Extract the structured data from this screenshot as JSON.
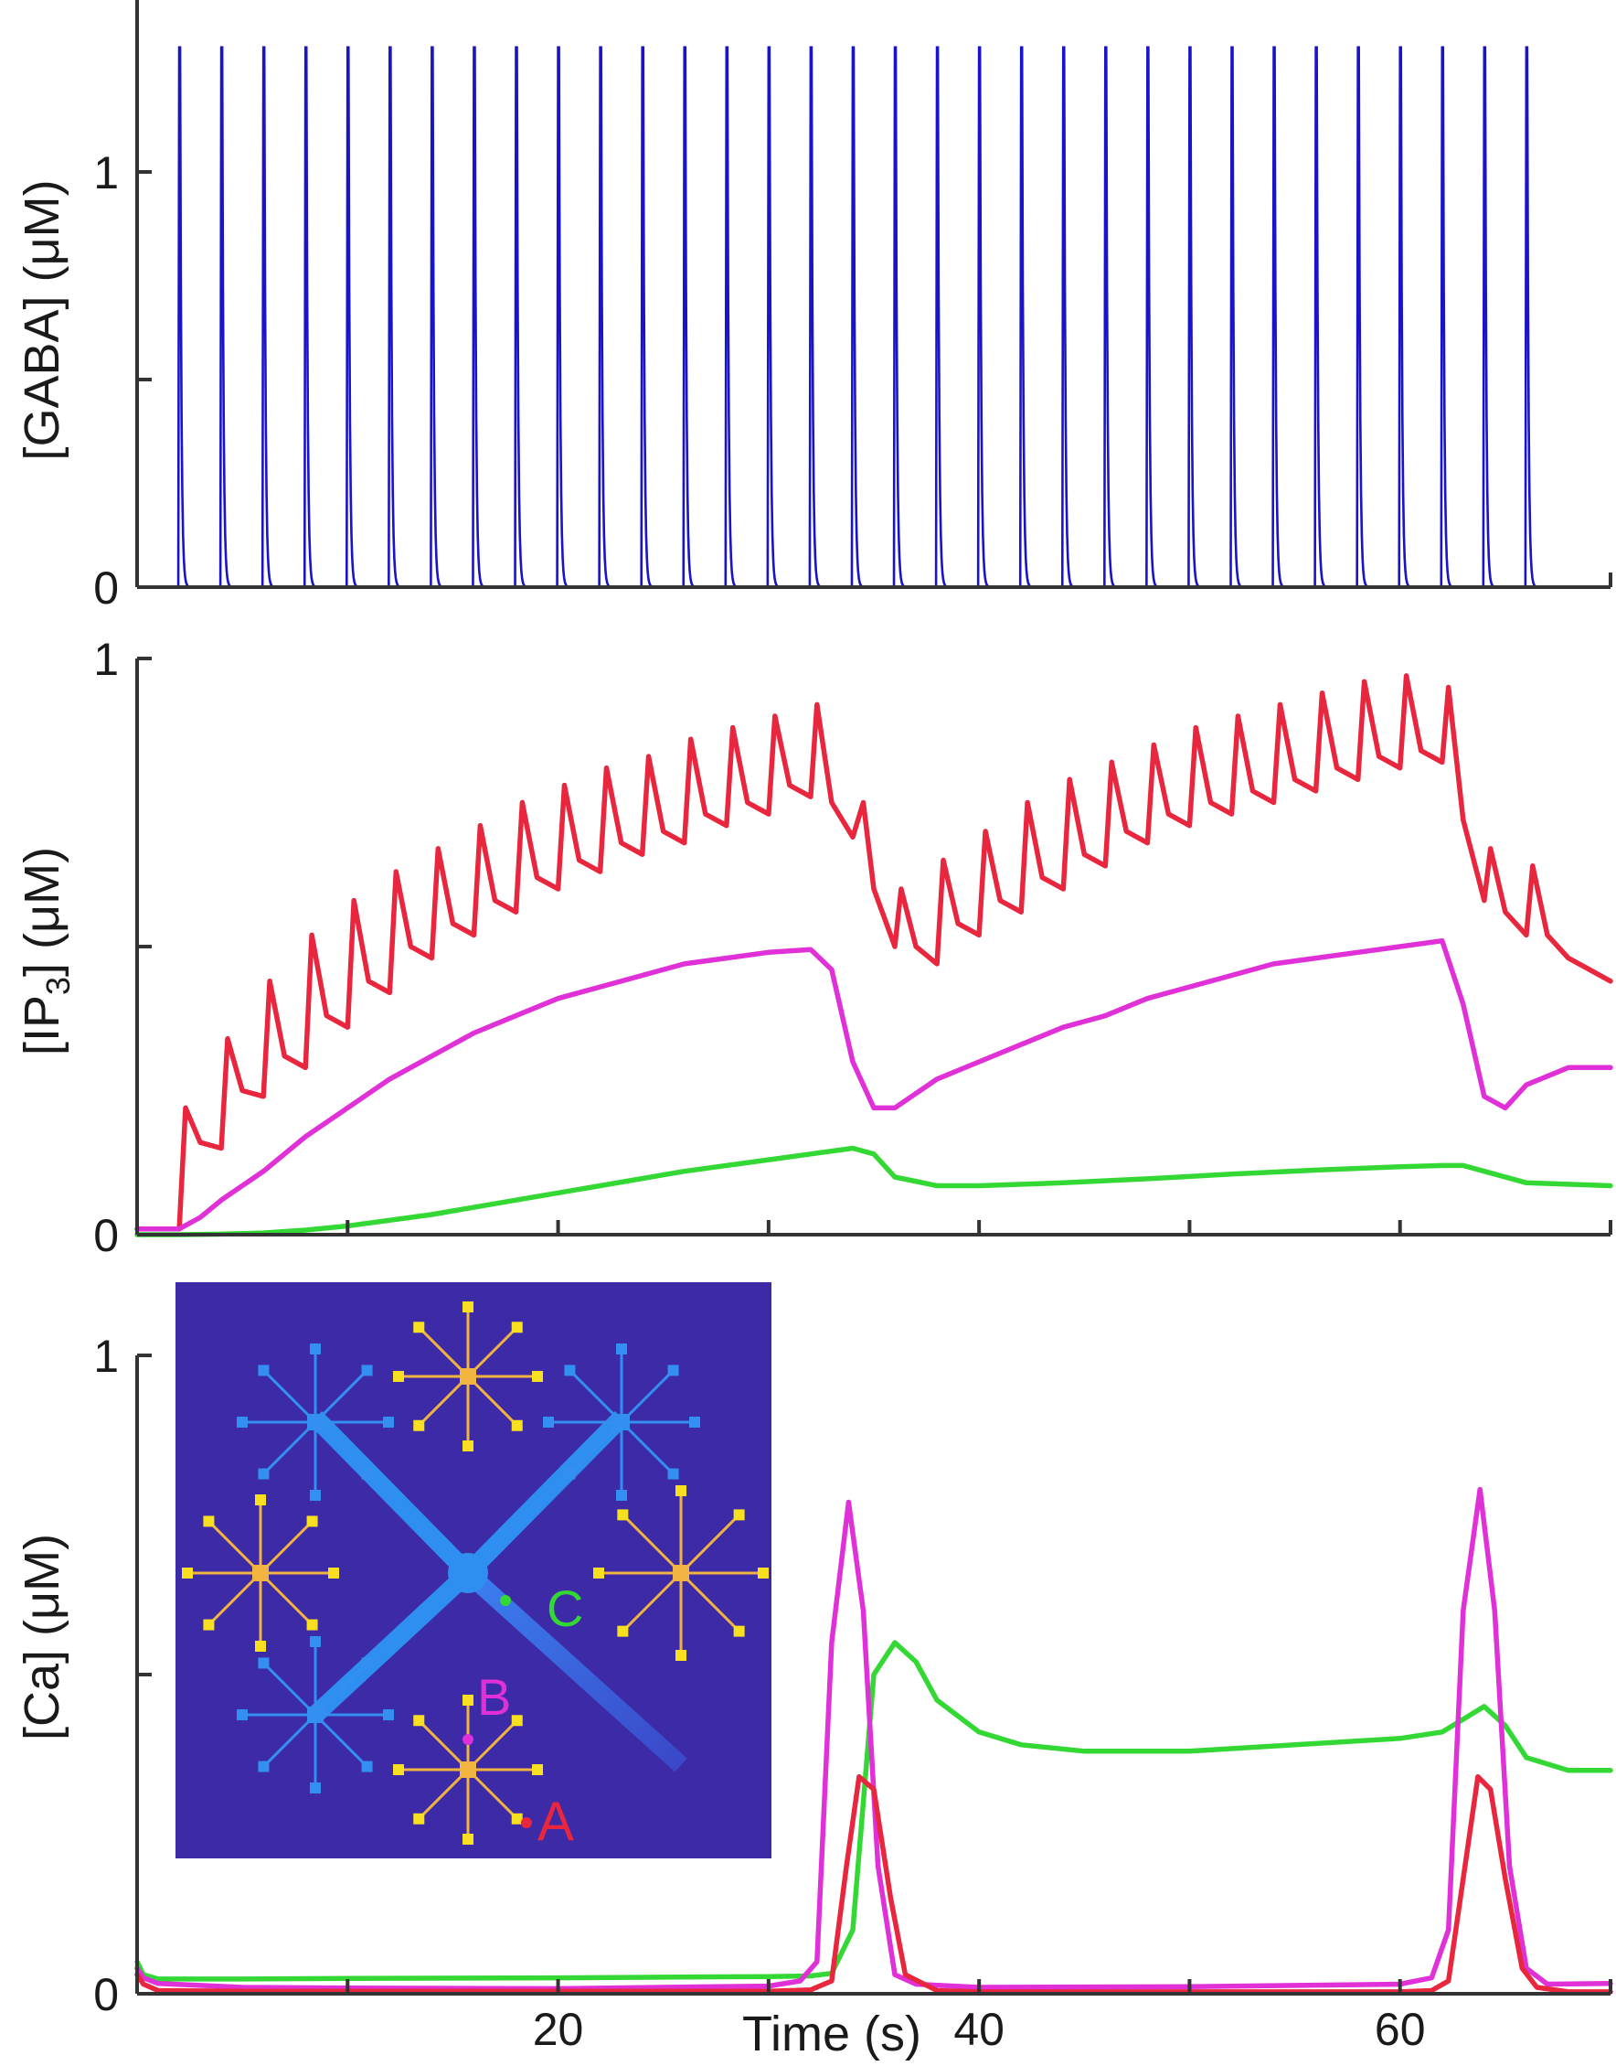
{
  "colors": {
    "gaba": "#1a14c8",
    "red": "#e8263e",
    "magenta": "#e030d8",
    "green": "#34d834",
    "inset_bg": "#3d2aa6",
    "inset_thick": "#2f8ff0",
    "inset_blue_star": "#3390f0",
    "inset_gold": "#f2b440",
    "inset_yellow": "#f8e020",
    "axis": "#333333"
  },
  "chart_data": [
    {
      "id": "gaba",
      "type": "line",
      "ylabel": "[GABA] (μM)",
      "ylim": [
        0,
        1.35
      ],
      "yticks": [
        0,
        0.5,
        1
      ],
      "ytick_labels": [
        "0",
        "",
        "1"
      ],
      "xlim": [
        0,
        70
      ],
      "xticks": [
        70
      ],
      "series": [
        {
          "color_key": "gaba",
          "kind": "pulses",
          "pulse_times": [
            2,
            4,
            6,
            8,
            10,
            12,
            14,
            16,
            18,
            20,
            22,
            24,
            26,
            28,
            30,
            32,
            34,
            36,
            38,
            40,
            42,
            44,
            46,
            48,
            50,
            52,
            54,
            56,
            58,
            60,
            62,
            64,
            66
          ],
          "peak": 1.3
        }
      ]
    },
    {
      "id": "ip3",
      "type": "line",
      "ylabel": "[IP3] (μM)",
      "ylabel_main": "[IP",
      "ylabel_sub": "3",
      "ylabel_tail": "] (μM)",
      "ylim": [
        0,
        1
      ],
      "yticks": [
        0,
        0.5,
        1
      ],
      "ytick_labels": [
        "0",
        "",
        "1"
      ],
      "xlim": [
        0,
        70
      ],
      "xticks": [
        10,
        20,
        30,
        40,
        50,
        60,
        70
      ],
      "series": [
        {
          "color_key": "red",
          "x": [
            0,
            2,
            2.3,
            3,
            4,
            4.3,
            5,
            6,
            6.3,
            7,
            8,
            8.3,
            9,
            10,
            10.3,
            11,
            12,
            12.3,
            13,
            14,
            14.3,
            15,
            16,
            16.3,
            17,
            18,
            18.3,
            19,
            20,
            20.3,
            21,
            22,
            22.3,
            23,
            24,
            24.3,
            25,
            26,
            26.3,
            27,
            28,
            28.3,
            29,
            30,
            30.3,
            31,
            32,
            32.3,
            33,
            34,
            34.5,
            35,
            36,
            36.3,
            37,
            38,
            38.3,
            39,
            40,
            40.3,
            41,
            42,
            42.3,
            43,
            44,
            44.3,
            45,
            46,
            46.3,
            47,
            48,
            48.3,
            49,
            50,
            50.3,
            51,
            52,
            52.3,
            53,
            54,
            54.3,
            55,
            56,
            56.3,
            57,
            58,
            58.3,
            59,
            60,
            60.3,
            61,
            62,
            62.3,
            63,
            64,
            64.3,
            65,
            66,
            66.3,
            67,
            68,
            69,
            70
          ],
          "y": [
            0.01,
            0.01,
            0.22,
            0.16,
            0.15,
            0.34,
            0.25,
            0.24,
            0.44,
            0.31,
            0.29,
            0.52,
            0.38,
            0.36,
            0.58,
            0.44,
            0.42,
            0.63,
            0.5,
            0.48,
            0.67,
            0.54,
            0.52,
            0.71,
            0.58,
            0.56,
            0.75,
            0.62,
            0.6,
            0.78,
            0.65,
            0.63,
            0.81,
            0.68,
            0.66,
            0.83,
            0.7,
            0.68,
            0.86,
            0.73,
            0.71,
            0.88,
            0.75,
            0.73,
            0.9,
            0.78,
            0.76,
            0.92,
            0.75,
            0.69,
            0.75,
            0.6,
            0.5,
            0.6,
            0.5,
            0.47,
            0.65,
            0.54,
            0.52,
            0.7,
            0.58,
            0.56,
            0.75,
            0.62,
            0.6,
            0.79,
            0.66,
            0.64,
            0.82,
            0.7,
            0.68,
            0.85,
            0.73,
            0.71,
            0.88,
            0.75,
            0.73,
            0.9,
            0.77,
            0.75,
            0.92,
            0.79,
            0.77,
            0.94,
            0.81,
            0.79,
            0.96,
            0.83,
            0.81,
            0.97,
            0.84,
            0.82,
            0.95,
            0.72,
            0.58,
            0.67,
            0.56,
            0.52,
            0.64,
            0.52,
            0.48,
            0.46,
            0.44
          ]
        },
        {
          "color_key": "magenta",
          "x": [
            0,
            2,
            3,
            4,
            6,
            8,
            10,
            12,
            14,
            16,
            18,
            20,
            22,
            24,
            26,
            28,
            30,
            32,
            33,
            34,
            35,
            36,
            38,
            40,
            42,
            44,
            46,
            48,
            50,
            52,
            54,
            56,
            58,
            60,
            62,
            63,
            64,
            65,
            66,
            68,
            70
          ],
          "y": [
            0.01,
            0.01,
            0.03,
            0.06,
            0.11,
            0.17,
            0.22,
            0.27,
            0.31,
            0.35,
            0.38,
            0.41,
            0.43,
            0.45,
            0.47,
            0.48,
            0.49,
            0.495,
            0.46,
            0.3,
            0.22,
            0.22,
            0.27,
            0.3,
            0.33,
            0.36,
            0.38,
            0.41,
            0.43,
            0.45,
            0.47,
            0.48,
            0.49,
            0.5,
            0.51,
            0.4,
            0.24,
            0.22,
            0.26,
            0.29,
            0.29
          ]
        },
        {
          "color_key": "green",
          "x": [
            0,
            2,
            4,
            6,
            8,
            10,
            14,
            18,
            22,
            26,
            30,
            32,
            34,
            35,
            36,
            38,
            40,
            44,
            48,
            52,
            56,
            60,
            62,
            63,
            64,
            66,
            70
          ],
          "y": [
            0.0,
            0.0,
            0.001,
            0.003,
            0.008,
            0.015,
            0.035,
            0.06,
            0.085,
            0.11,
            0.13,
            0.14,
            0.15,
            0.14,
            0.1,
            0.085,
            0.085,
            0.09,
            0.097,
            0.105,
            0.112,
            0.118,
            0.12,
            0.12,
            0.11,
            0.09,
            0.085
          ]
        }
      ]
    },
    {
      "id": "ca",
      "type": "line",
      "ylabel": "[Ca] (μM)",
      "ylim": [
        0,
        1
      ],
      "yticks": [
        0,
        0.5,
        1
      ],
      "ytick_labels": [
        "0",
        "",
        "1"
      ],
      "xlim": [
        0,
        70
      ],
      "xticks": [
        10,
        20,
        30,
        40,
        50,
        60,
        70
      ],
      "xtick_labels": [
        "",
        "20",
        "",
        "40",
        "",
        "60",
        ""
      ],
      "xlabel": "Time (s)",
      "series": [
        {
          "color_key": "green",
          "x": [
            0,
            0.3,
            1,
            5,
            10,
            20,
            30,
            32,
            33,
            34,
            35,
            36,
            37,
            38,
            40,
            42,
            45,
            50,
            55,
            60,
            62,
            63,
            64,
            65,
            66,
            68,
            70
          ],
          "y": [
            0.05,
            0.03,
            0.023,
            0.023,
            0.024,
            0.025,
            0.027,
            0.028,
            0.032,
            0.1,
            0.5,
            0.55,
            0.52,
            0.46,
            0.41,
            0.39,
            0.38,
            0.38,
            0.39,
            0.4,
            0.41,
            0.43,
            0.45,
            0.42,
            0.37,
            0.35,
            0.35
          ]
        },
        {
          "color_key": "magenta",
          "x": [
            0,
            0.3,
            1,
            5,
            10,
            20,
            30,
            31.5,
            32.3,
            33,
            33.8,
            34.5,
            35.2,
            36,
            37,
            40,
            50,
            60,
            61.5,
            62.3,
            63,
            63.8,
            64.5,
            65.2,
            66,
            67,
            70
          ],
          "y": [
            0.04,
            0.025,
            0.016,
            0.01,
            0.009,
            0.008,
            0.012,
            0.02,
            0.05,
            0.55,
            0.77,
            0.6,
            0.2,
            0.03,
            0.015,
            0.01,
            0.011,
            0.015,
            0.025,
            0.1,
            0.6,
            0.79,
            0.6,
            0.2,
            0.04,
            0.015,
            0.016
          ]
        },
        {
          "color_key": "red",
          "x": [
            0,
            0.3,
            1,
            5,
            10,
            20,
            30,
            32,
            33,
            33.7,
            34.3,
            35,
            35.8,
            36.5,
            38,
            40,
            50,
            60,
            61.5,
            62.3,
            63,
            63.7,
            64.3,
            65,
            65.8,
            66.5,
            68,
            70
          ],
          "y": [
            0.03,
            0.015,
            0.005,
            0.004,
            0.004,
            0.004,
            0.004,
            0.006,
            0.02,
            0.2,
            0.34,
            0.32,
            0.15,
            0.03,
            0.005,
            0.003,
            0.003,
            0.003,
            0.005,
            0.02,
            0.18,
            0.34,
            0.32,
            0.18,
            0.04,
            0.01,
            0.003,
            0.003
          ]
        }
      ],
      "inset": {
        "point_labels": [
          {
            "text": "A",
            "color_key": "red"
          },
          {
            "text": "B",
            "color_key": "magenta"
          },
          {
            "text": "C",
            "color_key": "green"
          }
        ]
      }
    }
  ]
}
